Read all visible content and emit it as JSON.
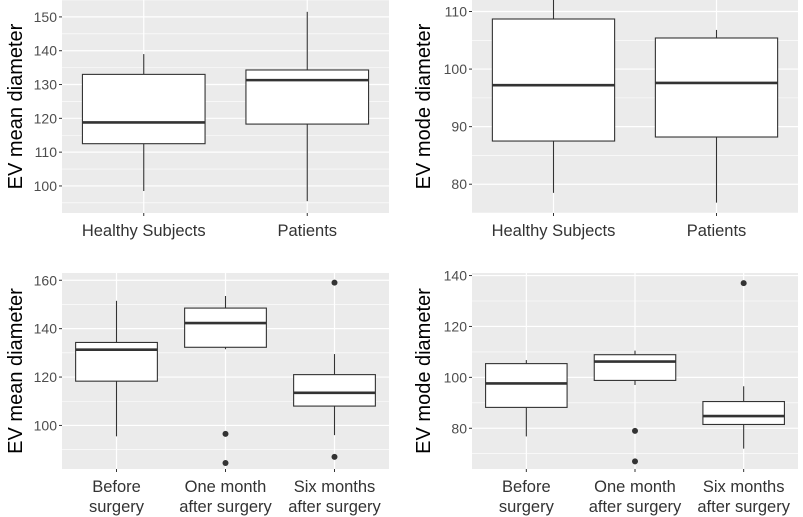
{
  "chart_data": [
    {
      "type": "boxplot",
      "ylabel": "EV mean diameter",
      "ylim": [
        92,
        155
      ],
      "yticks": [
        100,
        110,
        120,
        130,
        140,
        150
      ],
      "categories": [
        "Healthy Subjects",
        "Patients"
      ],
      "boxes": [
        {
          "name": "Healthy Subjects",
          "whisker_low": 98.5,
          "q1": 112.5,
          "median": 118.8,
          "q3": 133.0,
          "whisker_high": 139.0,
          "outliers": []
        },
        {
          "name": "Patients",
          "whisker_low": 95.5,
          "q1": 118.3,
          "median": 131.3,
          "q3": 134.3,
          "whisker_high": 151.5,
          "outliers": []
        }
      ]
    },
    {
      "type": "boxplot",
      "ylabel": "EV mode diameter",
      "ylim": [
        75,
        112
      ],
      "yticks": [
        80,
        90,
        100,
        110
      ],
      "categories": [
        "Healthy Subjects",
        "Patients"
      ],
      "boxes": [
        {
          "name": "Healthy Subjects",
          "whisker_low": 78.5,
          "q1": 87.5,
          "median": 97.2,
          "q3": 108.7,
          "whisker_high": 112.0,
          "outliers": []
        },
        {
          "name": "Patients",
          "whisker_low": 76.8,
          "q1": 88.2,
          "median": 97.6,
          "q3": 105.4,
          "whisker_high": 106.8,
          "outliers": []
        }
      ]
    },
    {
      "type": "boxplot",
      "ylabel": "EV mean diameter",
      "ylim": [
        82,
        163
      ],
      "yticks": [
        100,
        120,
        140,
        160
      ],
      "categories": [
        "Before\nsurgery",
        "One month\nafter surgery",
        "Six months\nafter surgery"
      ],
      "boxes": [
        {
          "name": "Before surgery",
          "whisker_low": 95.5,
          "q1": 118.3,
          "median": 131.3,
          "q3": 134.3,
          "whisker_high": 151.5,
          "outliers": []
        },
        {
          "name": "One month after surgery",
          "whisker_low": 131.5,
          "q1": 132.3,
          "median": 142.3,
          "q3": 148.5,
          "whisker_high": 153.5,
          "outliers": [
            96.5,
            84.5
          ]
        },
        {
          "name": "Six months after surgery",
          "whisker_low": 96.0,
          "q1": 108.0,
          "median": 113.5,
          "q3": 121.0,
          "whisker_high": 129.5,
          "outliers": [
            159.0,
            87.0
          ]
        }
      ]
    },
    {
      "type": "boxplot",
      "ylabel": "EV mode diameter",
      "ylim": [
        64,
        141
      ],
      "yticks": [
        80,
        100,
        120,
        140
      ],
      "categories": [
        "Before\nsurgery",
        "One month\nafter surgery",
        "Six months\nafter surgery"
      ],
      "boxes": [
        {
          "name": "Before surgery",
          "whisker_low": 76.8,
          "q1": 88.2,
          "median": 97.6,
          "q3": 105.4,
          "whisker_high": 106.8,
          "outliers": []
        },
        {
          "name": "One month after surgery",
          "whisker_low": 97.0,
          "q1": 98.8,
          "median": 106.2,
          "q3": 108.9,
          "whisker_high": 110.5,
          "outliers": [
            79.0,
            67.0
          ]
        },
        {
          "name": "Six months after surgery",
          "whisker_low": 72.0,
          "q1": 81.5,
          "median": 84.8,
          "q3": 90.5,
          "whisker_high": 96.5,
          "outliers": [
            137.0
          ]
        }
      ]
    }
  ]
}
